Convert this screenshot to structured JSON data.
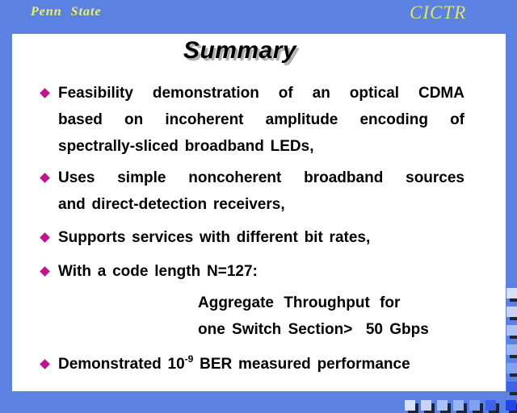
{
  "header": {
    "left_brand": "Penn State",
    "right_brand": "CICTR"
  },
  "slide": {
    "title": "Summary",
    "bullets": [
      {
        "lines": [
          "Feasibility demonstration of an optical CDMA",
          "based on incoherent amplitude encoding of",
          "spectrally-sliced broadband LEDs,"
        ]
      },
      {
        "lines": [
          "Uses simple noncoherent broadband sources",
          "and direct-detection receivers,"
        ]
      },
      {
        "lines": [
          "Supports services with different bit rates,"
        ]
      },
      {
        "lines": [
          "With a code length N=127:"
        ]
      },
      {
        "text_before_sup": "Demonstrated 10",
        "superscript": "-9",
        "text_after_sup": " BER measured performance"
      }
    ],
    "note": {
      "line1": "Aggregate Throughput for",
      "line2": "one Switch Section>  50 Gbps"
    }
  },
  "colors": {
    "background_blue": "#5B81E2",
    "penn_state_yellow": "#EFEF68",
    "cictr_yellow_green": "#DCE75E",
    "title_shadow_gray": "#ADADAD",
    "bullet_diamond_magenta": "#C4148C",
    "square_shadow_navy": "#1E2433",
    "square_palette": [
      "#D8E0F7",
      "#C9D3F6",
      "#ABC2F6",
      "#99B7F4",
      "#7FA3F2",
      "#3E63EA",
      "#1F45E6"
    ]
  }
}
